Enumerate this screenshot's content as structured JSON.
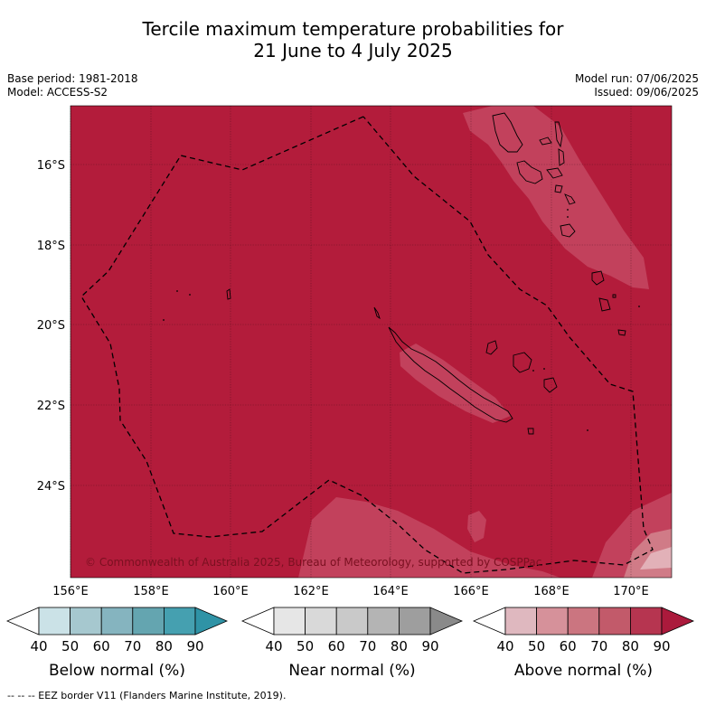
{
  "title_line1": "Tercile maximum temperature probabilities for",
  "title_line2": "21 June to 4 July 2025",
  "base_period": "Base period: 1981-2018",
  "model": "Model: ACCESS-S2",
  "model_run": "Model run: 07/06/2025",
  "issued": "Issued: 09/06/2025",
  "copyright": "© Commonwealth of Australia 2025, Bureau of Meteorology, supported by COSPPac",
  "lat_ticks": [
    "16°S",
    "18°S",
    "20°S",
    "22°S",
    "24°S"
  ],
  "lon_ticks": [
    "156°E",
    "158°E",
    "160°E",
    "162°E",
    "164°E",
    "166°E",
    "168°E",
    "170°E"
  ],
  "colorbars": [
    {
      "name": "Below normal (%)",
      "labels": [
        "40",
        "50",
        "60",
        "70",
        "80",
        "90"
      ],
      "colors": [
        "#ffffff",
        "#cbe2e7",
        "#a6c8cf",
        "#85b4bf",
        "#64a5b0",
        "#45a0b0",
        "#2f93a6"
      ]
    },
    {
      "name": "Near normal (%)",
      "labels": [
        "40",
        "50",
        "60",
        "70",
        "80",
        "90"
      ],
      "colors": [
        "#ffffff",
        "#e6e6e6",
        "#d9d9d9",
        "#c9c9c9",
        "#b4b4b4",
        "#9e9e9e",
        "#8a8a8a"
      ]
    },
    {
      "name": "Above normal (%)",
      "labels": [
        "40",
        "50",
        "60",
        "70",
        "80",
        "90"
      ],
      "colors": [
        "#ffffff",
        "#dfb8bf",
        "#d6919a",
        "#cb7580",
        "#c25a6a",
        "#b63550",
        "#ab1a3c"
      ]
    }
  ],
  "footnote": "-- -- -- EEZ border V11 (Flanders Marine Institute, 2019).",
  "colors": {
    "field_main": "#b31c3b",
    "field_light": "#c2415c",
    "field_lighter": "#d07b87"
  }
}
